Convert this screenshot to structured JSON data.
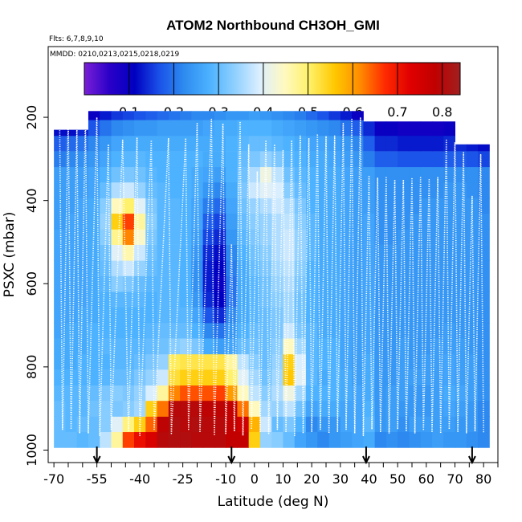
{
  "chart_data": {
    "type": "heatmap",
    "title": "ATOM2 Northbound CH3OH_GMI",
    "flights_label": "Flts: 6,7,8,9,10",
    "dates_label": "MMDD: 0210,0213,0215,0218,0219",
    "xlabel": "Latitude (deg N)",
    "ylabel": "PSXC (mbar)",
    "xlim": [
      -72,
      85
    ],
    "ylim": [
      1030,
      30
    ],
    "x_ticks": [
      "-70",
      "-55",
      "-40",
      "-25",
      "-10",
      "0",
      "10",
      "20",
      "30",
      "40",
      "50",
      "60",
      "70",
      "80"
    ],
    "x_tick_values": [
      -70,
      -55,
      -40,
      -25,
      -10,
      0,
      10,
      20,
      30,
      40,
      50,
      60,
      70,
      80
    ],
    "y_ticks": [
      "200",
      "400",
      "600",
      "800",
      "1000"
    ],
    "y_tick_values": [
      200,
      400,
      600,
      800,
      1000
    ],
    "colorbar": {
      "min": 0.0,
      "max": 0.84,
      "tick_labels": [
        "0.1",
        "0.2",
        "0.3",
        "0.4",
        "0.5",
        "0.6",
        "0.7",
        "0.8"
      ],
      "tick_values": [
        0.1,
        0.2,
        0.3,
        0.4,
        0.5,
        0.6,
        0.7,
        0.8
      ],
      "stops": [
        "#7a1fd6",
        "#2a00c8",
        "#0000c0",
        "#1a52e8",
        "#2e8cf0",
        "#4db2ff",
        "#8fd0ff",
        "#dcefff",
        "#fff9c0",
        "#fff066",
        "#ffc800",
        "#ff8c00",
        "#ff2a00",
        "#e00000",
        "#c00000",
        "#a02020"
      ]
    },
    "lat_bins": [
      -68,
      -64,
      -60,
      -56,
      -52,
      -48,
      -44,
      -40,
      -36,
      -32,
      -28,
      -24,
      -20,
      -16,
      -12,
      -8,
      -4,
      0,
      4,
      8,
      12,
      16,
      20,
      24,
      28,
      32,
      36,
      40,
      44,
      48,
      52,
      56,
      60,
      64,
      68,
      72,
      76,
      80
    ],
    "pressure_levels": [
      975,
      937,
      900,
      862,
      825,
      787,
      750,
      712,
      675,
      637,
      600,
      562,
      525,
      487,
      450,
      412,
      375,
      337,
      300,
      262,
      225,
      187
    ],
    "ch3oh_grid": [
      [
        0.3,
        0.3,
        0.29,
        0.3,
        0.37,
        0.47,
        0.66,
        0.71,
        0.74,
        0.8,
        0.81,
        0.81,
        0.8,
        0.8,
        0.8,
        0.78,
        0.78,
        0.55,
        0.34,
        0.33,
        0.3,
        0.26,
        0.24,
        0.22,
        0.24,
        0.25,
        0.26,
        0.27,
        0.22,
        0.23,
        0.22,
        0.23,
        0.24,
        0.25,
        0.24,
        0.24,
        0.23,
        0.22
      ],
      [
        0.3,
        0.29,
        0.3,
        0.3,
        0.33,
        0.4,
        0.49,
        0.55,
        0.64,
        0.79,
        0.81,
        0.8,
        0.81,
        0.8,
        0.8,
        0.78,
        0.76,
        0.58,
        0.38,
        0.3,
        0.32,
        0.28,
        0.22,
        0.24,
        0.24,
        0.26,
        0.26,
        0.29,
        0.24,
        0.25,
        0.23,
        0.25,
        0.25,
        0.25,
        0.25,
        0.24,
        0.24,
        0.22
      ],
      [
        0.3,
        0.29,
        0.29,
        0.31,
        0.33,
        0.32,
        0.33,
        0.35,
        0.55,
        0.63,
        0.8,
        0.8,
        0.8,
        0.79,
        0.79,
        0.78,
        0.63,
        0.45,
        0.35,
        0.34,
        0.37,
        0.31,
        0.26,
        0.27,
        0.27,
        0.26,
        0.26,
        0.28,
        0.24,
        0.25,
        0.24,
        0.24,
        0.24,
        0.25,
        0.26,
        0.25,
        0.24,
        0.22
      ],
      [
        0.29,
        0.29,
        0.29,
        0.3,
        0.32,
        0.33,
        0.32,
        0.34,
        0.39,
        0.47,
        0.62,
        0.65,
        0.65,
        0.65,
        0.66,
        0.6,
        0.45,
        0.37,
        0.33,
        0.36,
        0.42,
        0.35,
        0.28,
        0.28,
        0.28,
        0.27,
        0.26,
        0.27,
        0.24,
        0.25,
        0.25,
        0.24,
        0.24,
        0.25,
        0.27,
        0.26,
        0.25,
        0.23
      ],
      [
        0.28,
        0.28,
        0.28,
        0.28,
        0.29,
        0.3,
        0.3,
        0.32,
        0.34,
        0.38,
        0.53,
        0.55,
        0.55,
        0.55,
        0.55,
        0.5,
        0.4,
        0.35,
        0.31,
        0.35,
        0.56,
        0.4,
        0.29,
        0.27,
        0.28,
        0.27,
        0.25,
        0.27,
        0.24,
        0.24,
        0.25,
        0.25,
        0.25,
        0.25,
        0.26,
        0.25,
        0.25,
        0.23
      ],
      [
        0.27,
        0.27,
        0.28,
        0.28,
        0.28,
        0.29,
        0.29,
        0.3,
        0.32,
        0.34,
        0.51,
        0.52,
        0.52,
        0.52,
        0.52,
        0.47,
        0.37,
        0.33,
        0.3,
        0.34,
        0.55,
        0.39,
        0.29,
        0.28,
        0.28,
        0.26,
        0.25,
        0.27,
        0.24,
        0.24,
        0.25,
        0.24,
        0.25,
        0.25,
        0.26,
        0.25,
        0.25,
        0.23
      ],
      [
        0.27,
        0.27,
        0.27,
        0.28,
        0.29,
        0.29,
        0.29,
        0.29,
        0.3,
        0.31,
        0.33,
        0.34,
        0.32,
        0.27,
        0.25,
        0.26,
        0.3,
        0.31,
        0.3,
        0.33,
        0.45,
        0.35,
        0.29,
        0.28,
        0.28,
        0.26,
        0.25,
        0.26,
        0.24,
        0.24,
        0.25,
        0.24,
        0.24,
        0.25,
        0.25,
        0.25,
        0.24,
        0.23
      ],
      [
        0.26,
        0.27,
        0.27,
        0.28,
        0.28,
        0.28,
        0.28,
        0.28,
        0.29,
        0.3,
        0.3,
        0.3,
        0.28,
        0.22,
        0.2,
        0.24,
        0.28,
        0.3,
        0.3,
        0.32,
        0.38,
        0.32,
        0.29,
        0.27,
        0.27,
        0.26,
        0.25,
        0.26,
        0.24,
        0.24,
        0.24,
        0.24,
        0.24,
        0.24,
        0.25,
        0.24,
        0.24,
        0.23
      ],
      [
        0.26,
        0.26,
        0.27,
        0.27,
        0.28,
        0.28,
        0.28,
        0.28,
        0.28,
        0.29,
        0.29,
        0.29,
        0.26,
        0.17,
        0.14,
        0.22,
        0.27,
        0.29,
        0.3,
        0.32,
        0.35,
        0.31,
        0.28,
        0.27,
        0.27,
        0.26,
        0.25,
        0.26,
        0.24,
        0.24,
        0.24,
        0.24,
        0.24,
        0.24,
        0.24,
        0.24,
        0.24,
        0.23
      ],
      [
        0.26,
        0.26,
        0.26,
        0.27,
        0.28,
        0.29,
        0.29,
        0.29,
        0.28,
        0.29,
        0.29,
        0.28,
        0.24,
        0.14,
        0.11,
        0.2,
        0.27,
        0.29,
        0.31,
        0.33,
        0.35,
        0.31,
        0.28,
        0.27,
        0.27,
        0.26,
        0.25,
        0.26,
        0.24,
        0.24,
        0.24,
        0.24,
        0.24,
        0.24,
        0.24,
        0.24,
        0.24,
        0.23
      ],
      [
        0.26,
        0.26,
        0.26,
        0.27,
        0.29,
        0.33,
        0.32,
        0.3,
        0.29,
        0.29,
        0.29,
        0.28,
        0.23,
        0.13,
        0.1,
        0.2,
        0.27,
        0.29,
        0.31,
        0.34,
        0.36,
        0.32,
        0.28,
        0.27,
        0.27,
        0.26,
        0.25,
        0.26,
        0.24,
        0.24,
        0.24,
        0.24,
        0.24,
        0.24,
        0.24,
        0.24,
        0.24,
        0.23
      ],
      [
        0.26,
        0.26,
        0.26,
        0.27,
        0.3,
        0.36,
        0.38,
        0.34,
        0.3,
        0.29,
        0.29,
        0.28,
        0.23,
        0.13,
        0.11,
        0.21,
        0.27,
        0.3,
        0.32,
        0.35,
        0.37,
        0.33,
        0.28,
        0.27,
        0.27,
        0.26,
        0.25,
        0.26,
        0.24,
        0.24,
        0.24,
        0.24,
        0.24,
        0.24,
        0.24,
        0.24,
        0.24,
        0.23
      ],
      [
        0.26,
        0.26,
        0.26,
        0.27,
        0.31,
        0.4,
        0.46,
        0.38,
        0.31,
        0.29,
        0.29,
        0.28,
        0.24,
        0.14,
        0.12,
        0.22,
        0.28,
        0.31,
        0.33,
        0.36,
        0.38,
        0.34,
        0.29,
        0.27,
        0.27,
        0.26,
        0.25,
        0.26,
        0.24,
        0.24,
        0.24,
        0.24,
        0.24,
        0.24,
        0.24,
        0.24,
        0.24,
        0.23
      ],
      [
        0.26,
        0.26,
        0.26,
        0.27,
        0.33,
        0.48,
        0.62,
        0.44,
        0.32,
        0.29,
        0.29,
        0.28,
        0.25,
        0.16,
        0.14,
        0.24,
        0.29,
        0.32,
        0.34,
        0.36,
        0.38,
        0.34,
        0.29,
        0.27,
        0.27,
        0.26,
        0.25,
        0.26,
        0.23,
        0.23,
        0.24,
        0.24,
        0.24,
        0.24,
        0.24,
        0.24,
        0.24,
        0.23
      ],
      [
        0.25,
        0.26,
        0.26,
        0.27,
        0.34,
        0.55,
        0.66,
        0.47,
        0.33,
        0.29,
        0.29,
        0.28,
        0.26,
        0.18,
        0.16,
        0.25,
        0.3,
        0.33,
        0.34,
        0.36,
        0.37,
        0.33,
        0.29,
        0.27,
        0.27,
        0.26,
        0.25,
        0.26,
        0.23,
        0.23,
        0.23,
        0.24,
        0.24,
        0.24,
        0.24,
        0.24,
        0.24,
        0.23
      ],
      [
        0.25,
        0.25,
        0.26,
        0.27,
        0.33,
        0.45,
        0.5,
        0.4,
        0.32,
        0.29,
        0.29,
        0.28,
        0.26,
        0.21,
        0.19,
        0.26,
        0.31,
        0.34,
        0.36,
        0.38,
        0.36,
        0.32,
        0.28,
        0.27,
        0.27,
        0.26,
        0.25,
        0.25,
        0.23,
        0.23,
        0.23,
        0.23,
        0.24,
        0.24,
        0.24,
        0.24,
        0.24,
        0.22
      ],
      [
        0.25,
        0.25,
        0.25,
        0.26,
        0.3,
        0.36,
        0.38,
        0.34,
        0.3,
        0.29,
        0.28,
        0.28,
        0.27,
        0.24,
        0.22,
        0.27,
        0.32,
        0.38,
        0.4,
        0.39,
        0.33,
        0.3,
        0.28,
        0.27,
        0.27,
        0.26,
        0.25,
        0.25,
        0.23,
        0.23,
        0.23,
        0.23,
        0.23,
        0.23,
        0.24,
        0.24,
        0.23,
        0.22
      ],
      [
        0.25,
        0.25,
        0.25,
        0.26,
        0.28,
        0.31,
        0.32,
        0.31,
        0.29,
        0.28,
        0.28,
        0.28,
        0.27,
        0.26,
        0.25,
        0.28,
        0.31,
        0.36,
        0.42,
        0.37,
        0.31,
        0.29,
        0.28,
        0.27,
        0.27,
        0.26,
        0.25,
        0.25,
        0.23,
        0.23,
        0.23,
        0.23,
        0.23,
        0.23,
        0.23,
        0.23,
        0.23,
        0.22
      ],
      [
        0.21,
        0.22,
        0.23,
        0.24,
        0.26,
        0.28,
        0.29,
        0.29,
        0.28,
        0.28,
        0.28,
        0.28,
        0.28,
        0.27,
        0.27,
        0.28,
        0.3,
        0.32,
        0.34,
        0.32,
        0.29,
        0.28,
        0.27,
        0.27,
        0.26,
        0.25,
        0.24,
        0.21,
        0.18,
        0.18,
        0.17,
        0.17,
        0.17,
        0.17,
        0.18,
        0.18,
        0.17,
        0.16
      ],
      [
        0.18,
        0.19,
        0.2,
        0.22,
        0.24,
        0.26,
        0.27,
        0.27,
        0.27,
        0.27,
        0.27,
        0.27,
        0.27,
        0.27,
        0.27,
        0.28,
        0.29,
        0.3,
        0.3,
        0.29,
        0.28,
        0.27,
        0.26,
        0.26,
        0.25,
        0.24,
        0.22,
        0.18,
        0.14,
        0.14,
        0.13,
        0.13,
        0.13,
        0.13,
        0.14,
        0.14,
        0.13,
        0.12
      ],
      [
        0.12,
        0.12,
        0.14,
        0.17,
        0.2,
        0.22,
        0.23,
        0.24,
        0.24,
        0.25,
        0.25,
        0.25,
        0.25,
        0.26,
        0.27,
        0.27,
        0.28,
        0.28,
        0.28,
        0.27,
        0.26,
        0.25,
        0.24,
        0.23,
        0.22,
        0.2,
        0.18,
        0.14,
        0.1,
        0.1,
        0.09,
        0.09,
        0.09,
        0.09,
        0.1,
        0.1,
        0.09,
        0.09
      ],
      [
        0.06,
        0.06,
        0.08,
        0.1,
        0.13,
        0.15,
        0.16,
        0.17,
        0.18,
        0.19,
        0.2,
        0.21,
        0.22,
        0.22,
        0.23,
        0.24,
        0.24,
        0.25,
        0.24,
        0.23,
        0.22,
        0.21,
        0.19,
        0.17,
        0.15,
        0.13,
        0.1,
        0.08,
        0.05,
        0.05,
        0.04,
        0.04,
        0.04,
        0.04,
        0.05,
        0.05,
        0.05,
        0.05
      ]
    ],
    "coverage": [
      {
        "lat_from": -68,
        "lat_to": 37,
        "top_pressure": 185
      },
      {
        "lat_from": -68,
        "lat_to": -57,
        "top_pressure": 230
      },
      {
        "lat_from": 38,
        "lat_to": 69,
        "top_pressure": 210
      },
      {
        "lat_from": 69,
        "lat_to": 81,
        "top_pressure": 265
      }
    ],
    "flight_profile": {
      "lat": [
        -68,
        -67,
        -65,
        -64,
        -62,
        -61,
        -59,
        -58,
        -55,
        -54,
        -51,
        -50,
        -46,
        -44,
        -41,
        -40,
        -36,
        -35,
        -30,
        -29,
        -24,
        -23,
        -20,
        -19,
        -15,
        -14,
        -11,
        -10,
        -8,
        -7,
        -5,
        -4,
        -2,
        -1,
        1,
        2,
        4,
        5,
        7,
        8,
        10,
        11,
        13,
        14,
        16,
        17,
        19,
        20,
        22,
        23,
        25,
        26,
        28,
        29,
        31,
        32,
        34,
        35,
        37,
        38,
        40,
        41,
        43,
        44,
        46,
        47,
        49,
        50,
        52,
        53,
        55,
        56,
        58,
        59,
        61,
        62,
        64,
        65,
        67,
        68,
        70,
        71,
        73,
        74,
        76,
        77,
        79,
        80
      ],
      "pressure": [
        215,
        950,
        205,
        950,
        225,
        960,
        195,
        960,
        200,
        965,
        265,
        950,
        255,
        955,
        250,
        965,
        255,
        950,
        250,
        960,
        250,
        950,
        215,
        955,
        205,
        965,
        215,
        960,
        505,
        955,
        210,
        965,
        265,
        950,
        330,
        955,
        255,
        960,
        265,
        950,
        280,
        955,
        255,
        965,
        245,
        960,
        250,
        955,
        240,
        950,
        245,
        960,
        245,
        955,
        215,
        950,
        205,
        960,
        200,
        965,
        340,
        950,
        345,
        955,
        345,
        960,
        350,
        950,
        350,
        955,
        345,
        960,
        345,
        950,
        350,
        955,
        345,
        960,
        255,
        950,
        260,
        955,
        285,
        960,
        390,
        955,
        290,
        960
      ]
    },
    "takeoff_landing_lats": [
      -55,
      -8,
      39,
      76
    ]
  }
}
